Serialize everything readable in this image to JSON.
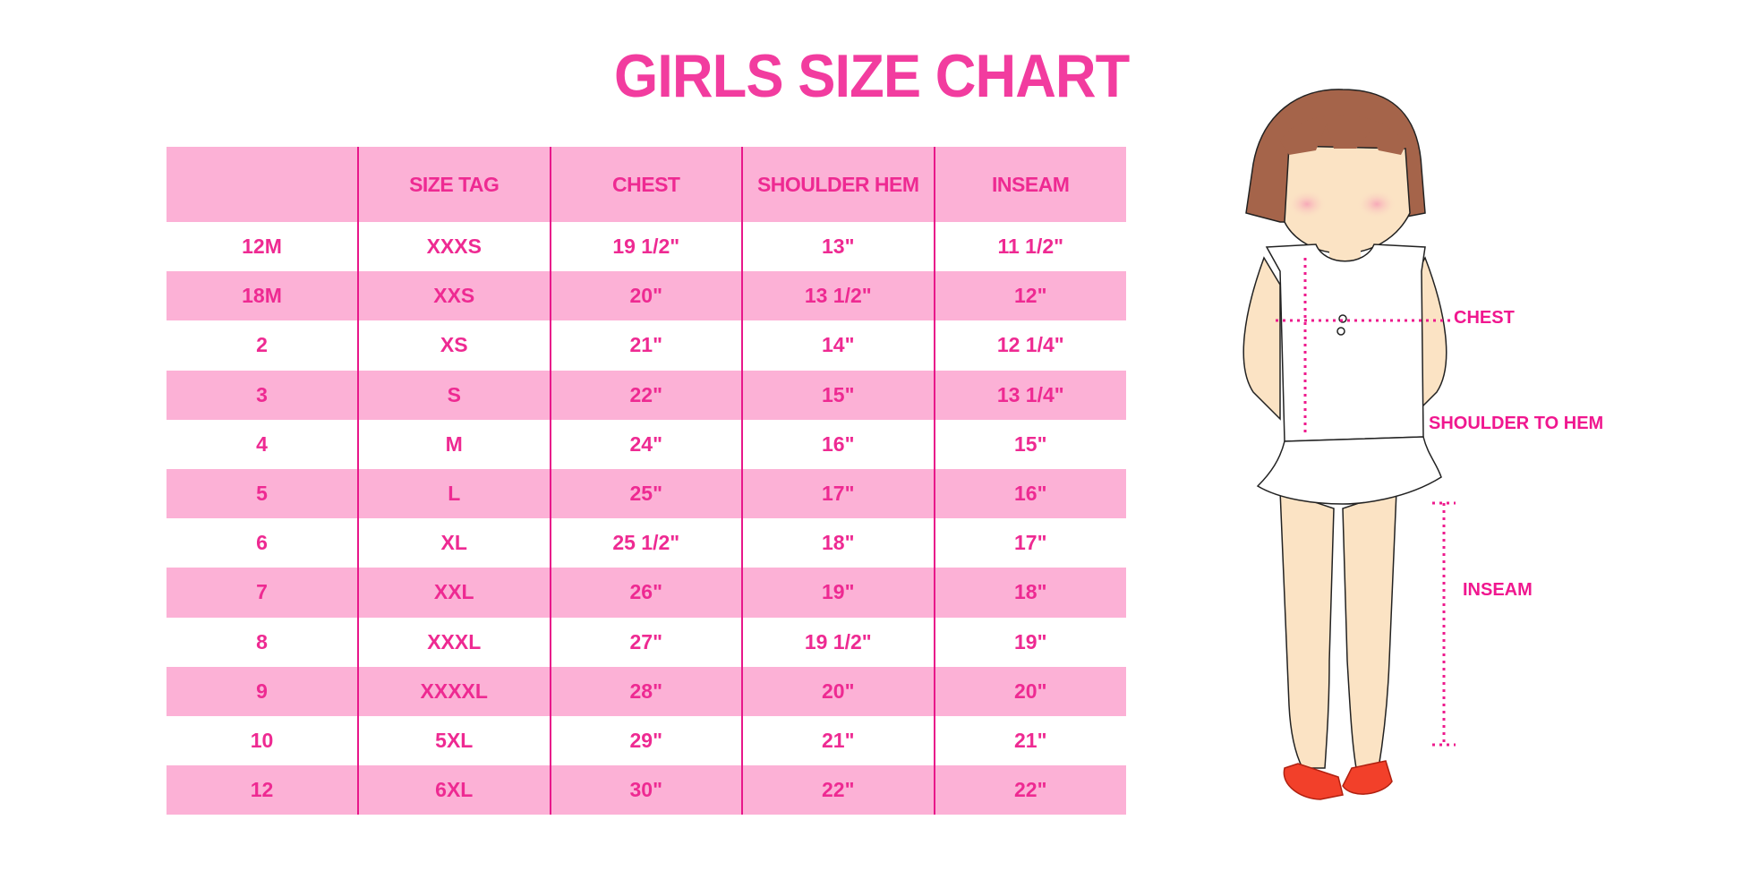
{
  "title": "GIRLS SIZE CHART",
  "colors": {
    "accent": "#ee2a92",
    "stripe": "#fcb1d6",
    "divider": "#e8178a"
  },
  "table": {
    "headers": [
      "",
      "SIZE TAG",
      "CHEST",
      "SHOULDER HEM",
      "INSEAM"
    ],
    "rows": [
      [
        "12M",
        "XXXS",
        "19 1/2\"",
        "13\"",
        "11 1/2\""
      ],
      [
        "18M",
        "XXS",
        "20\"",
        "13 1/2\"",
        "12\""
      ],
      [
        "2",
        "XS",
        "21\"",
        "14\"",
        "12 1/4\""
      ],
      [
        "3",
        "S",
        "22\"",
        "15\"",
        "13 1/4\""
      ],
      [
        "4",
        "M",
        "24\"",
        "16\"",
        "15\""
      ],
      [
        "5",
        "L",
        "25\"",
        "17\"",
        "16\""
      ],
      [
        "6",
        "XL",
        "25 1/2\"",
        "18\"",
        "17\""
      ],
      [
        "7",
        "XXL",
        "26\"",
        "19\"",
        "18\""
      ],
      [
        "8",
        "XXXL",
        "27\"",
        "19 1/2\"",
        "19\""
      ],
      [
        "9",
        "XXXXL",
        "28\"",
        "20\"",
        "20\""
      ],
      [
        "10",
        "5XL",
        "29\"",
        "21\"",
        "21\""
      ],
      [
        "12",
        "6XL",
        "30\"",
        "22\"",
        "22\""
      ]
    ]
  },
  "diagram": {
    "labels": {
      "chest": "CHEST",
      "shoulder_to_hem": "SHOULDER TO HEM",
      "inseam": "INSEAM"
    }
  }
}
